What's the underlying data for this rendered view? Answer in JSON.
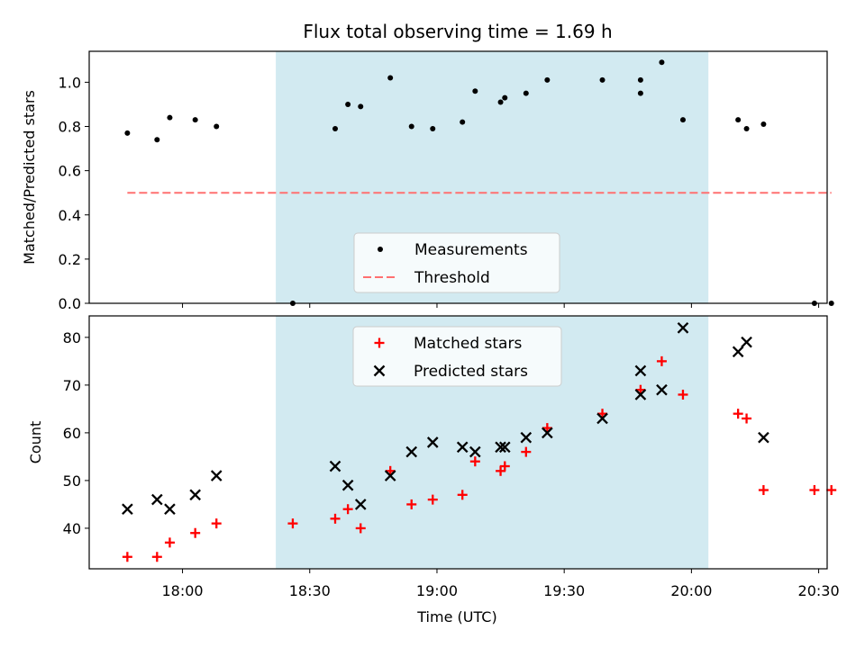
{
  "title": "Flux total observing time = 1.69 h",
  "chart_data": [
    {
      "type": "scatter",
      "ylabel": "Matched/Predicted stars",
      "xlabel": "",
      "ylim": [
        0,
        1.14
      ],
      "yticks": [
        "0.0",
        "0.2",
        "0.4",
        "0.6",
        "0.8",
        "1.0"
      ],
      "yticks_values": [
        0,
        0.2,
        0.4,
        0.6,
        0.8,
        1.0
      ],
      "grid": false,
      "legend_position": "lower-center",
      "shaded_interval": [
        "18:22",
        "20:04"
      ],
      "shade_color": "#add8e6",
      "series": [
        {
          "name": "Measurements",
          "marker": "dot",
          "color": "#000000",
          "points": [
            [
              "17:47",
              0.77
            ],
            [
              "17:54",
              0.74
            ],
            [
              "17:57",
              0.84
            ],
            [
              "18:03",
              0.83
            ],
            [
              "18:08",
              0.8
            ],
            [
              "18:26",
              0.0
            ],
            [
              "18:36",
              0.79
            ],
            [
              "18:39",
              0.9
            ],
            [
              "18:42",
              0.89
            ],
            [
              "18:49",
              1.02
            ],
            [
              "18:54",
              0.8
            ],
            [
              "18:59",
              0.79
            ],
            [
              "19:06",
              0.82
            ],
            [
              "19:09",
              0.96
            ],
            [
              "19:15",
              0.91
            ],
            [
              "19:16",
              0.93
            ],
            [
              "19:21",
              0.95
            ],
            [
              "19:26",
              1.01
            ],
            [
              "19:39",
              1.01
            ],
            [
              "19:48",
              1.01
            ],
            [
              "19:48",
              0.95
            ],
            [
              "19:53",
              1.09
            ],
            [
              "19:58",
              0.83
            ],
            [
              "20:11",
              0.83
            ],
            [
              "20:13",
              0.79
            ],
            [
              "20:17",
              0.81
            ],
            [
              "20:29",
              0.0
            ],
            [
              "20:33",
              0.0
            ]
          ]
        },
        {
          "name": "Threshold",
          "type": "line",
          "style": "dashed",
          "color": "#ff7070",
          "points": [
            [
              "17:47",
              0.5
            ],
            [
              "20:33",
              0.5
            ]
          ]
        }
      ]
    },
    {
      "type": "scatter",
      "ylabel": "Count",
      "xlabel": "Time (UTC)",
      "ylim": [
        31.5,
        84.5
      ],
      "yticks": [
        "40",
        "50",
        "60",
        "70",
        "80"
      ],
      "yticks_values": [
        40,
        50,
        60,
        70,
        80
      ],
      "xlim": [
        "17:38",
        "20:32"
      ],
      "xticks": [
        "18:00",
        "18:30",
        "19:00",
        "19:30",
        "20:00",
        "20:30"
      ],
      "grid": false,
      "legend_position": "top-center",
      "shaded_interval": [
        "18:22",
        "20:04"
      ],
      "shade_color": "#add8e6",
      "series": [
        {
          "name": "Matched stars",
          "marker": "plus",
          "color": "#ff0000",
          "points": [
            [
              "17:47",
              34
            ],
            [
              "17:54",
              34
            ],
            [
              "17:57",
              37
            ],
            [
              "18:03",
              39
            ],
            [
              "18:08",
              41
            ],
            [
              "18:26",
              41
            ],
            [
              "18:36",
              42
            ],
            [
              "18:39",
              44
            ],
            [
              "18:42",
              40
            ],
            [
              "18:49",
              52
            ],
            [
              "18:54",
              45
            ],
            [
              "18:59",
              46
            ],
            [
              "19:06",
              47
            ],
            [
              "19:09",
              54
            ],
            [
              "19:15",
              52
            ],
            [
              "19:16",
              53
            ],
            [
              "19:21",
              56
            ],
            [
              "19:26",
              61
            ],
            [
              "19:39",
              64
            ],
            [
              "19:48",
              69
            ],
            [
              "19:53",
              75
            ],
            [
              "19:58",
              68
            ],
            [
              "20:11",
              64
            ],
            [
              "20:13",
              63
            ],
            [
              "20:17",
              48
            ],
            [
              "20:29",
              48
            ],
            [
              "20:33",
              48
            ]
          ]
        },
        {
          "name": "Predicted stars",
          "marker": "x",
          "color": "#000000",
          "points": [
            [
              "17:47",
              44
            ],
            [
              "17:54",
              46
            ],
            [
              "17:57",
              44
            ],
            [
              "18:03",
              47
            ],
            [
              "18:08",
              51
            ],
            [
              "18:36",
              53
            ],
            [
              "18:39",
              49
            ],
            [
              "18:42",
              45
            ],
            [
              "18:49",
              51
            ],
            [
              "18:54",
              56
            ],
            [
              "18:59",
              58
            ],
            [
              "19:06",
              57
            ],
            [
              "19:09",
              56
            ],
            [
              "19:15",
              57
            ],
            [
              "19:16",
              57
            ],
            [
              "19:21",
              59
            ],
            [
              "19:26",
              60
            ],
            [
              "19:39",
              63
            ],
            [
              "19:48",
              73
            ],
            [
              "19:48",
              68
            ],
            [
              "19:53",
              69
            ],
            [
              "19:58",
              82
            ],
            [
              "20:11",
              77
            ],
            [
              "20:13",
              79
            ],
            [
              "20:17",
              59
            ]
          ]
        }
      ]
    }
  ]
}
